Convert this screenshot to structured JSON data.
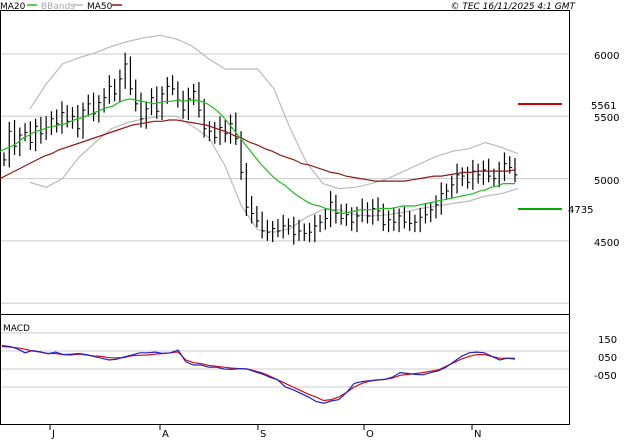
{
  "legend": {
    "ma20": "MA20",
    "bbands": "BBands",
    "ma50": "MA50",
    "copyright": "© TEC 16/11/2025 4:1 GMT"
  },
  "macd_label": "MACD",
  "colors": {
    "ma20": "#22bb22",
    "ma50": "#8b1a1a",
    "bbands": "#bbbbbb",
    "macd": "#2222cc",
    "signal": "#cc1111",
    "price": "#000000",
    "frame": "#000000",
    "grid": "#cccccc",
    "support": "#00aa00",
    "resistance": "#cc0000",
    "axis_text": "#000000"
  },
  "chart_data": [
    {
      "type": "line",
      "panel": "price",
      "x": [
        "J",
        "A",
        "S",
        "O",
        "N"
      ],
      "y_ticks": [
        "6000",
        "5500",
        "5000",
        "4500"
      ],
      "ylim": [
        4000,
        6250
      ],
      "price_start": 5150,
      "price_moves": [
        230,
        -120,
        90,
        20,
        -80,
        130,
        -60,
        50,
        70,
        -40,
        90,
        -70,
        40,
        -100,
        150,
        50,
        -80,
        90,
        40,
        90,
        -60,
        120,
        120,
        -200,
        -120,
        -120,
        80,
        90,
        -110,
        140,
        60,
        -20,
        -90,
        -80,
        90,
        60,
        -150,
        -150,
        -20,
        -50,
        80,
        -50,
        80,
        -120,
        -270,
        -280,
        -50,
        -60,
        -80,
        -10,
        30,
        -20,
        40,
        0,
        -70,
        30,
        -20,
        10,
        50,
        30,
        30,
        130,
        -90,
        -40,
        30,
        -60,
        50,
        50,
        -50,
        60,
        -20,
        -110,
        40,
        -20,
        50,
        -50,
        -10,
        10,
        40,
        20,
        40,
        40,
        90,
        20,
        50,
        80,
        -10,
        -50,
        90,
        -30,
        40,
        -50,
        -20,
        60,
        60,
        -30,
        -60
      ],
      "ma20_start": 5220,
      "ma20_moves": [
        20,
        20,
        30,
        40,
        20,
        30,
        10,
        20,
        10,
        10,
        10,
        20,
        20,
        10,
        20,
        20,
        20,
        20,
        10,
        30,
        20,
        10,
        -10,
        -10,
        -10,
        -10,
        10,
        10,
        0,
        10,
        -10,
        10,
        0,
        -10,
        -20,
        -30,
        -40,
        -50,
        -60,
        -60,
        -60,
        -60,
        -60,
        -60,
        -50,
        -50,
        -40,
        -30,
        -40,
        -40,
        -30,
        -30,
        -20,
        -10,
        -20,
        -10,
        -20,
        -10,
        10,
        10,
        10,
        0,
        0,
        10,
        0,
        0,
        10,
        10,
        0,
        0,
        10,
        10,
        10,
        10,
        10,
        10,
        10,
        10,
        10,
        10,
        20,
        10,
        20,
        10,
        20,
        0,
        0
      ],
      "ma50_start": 5000,
      "ma50_moves": [
        30,
        30,
        30,
        30,
        30,
        30,
        20,
        30,
        20,
        20,
        20,
        20,
        20,
        20,
        20,
        20,
        20,
        20,
        10,
        10,
        10,
        0,
        10,
        0,
        -10,
        -10,
        -10,
        -10,
        -20,
        -20,
        -20,
        -30,
        -20,
        -30,
        -20,
        -30,
        -20,
        -30,
        -20,
        -20,
        -30,
        -10,
        -20,
        -20,
        -20,
        -10,
        -20,
        -10,
        -10,
        -10,
        -10,
        0,
        0,
        0,
        0,
        10,
        10,
        10,
        10,
        0,
        10,
        10,
        10,
        0,
        10,
        0,
        0,
        0,
        0,
        10
      ],
      "band_upper": [
        5560,
        5760,
        5920,
        5970,
        6010,
        6060,
        6100,
        6130,
        6150,
        6120,
        6060,
        5960,
        5880,
        5880,
        5880,
        5720,
        5400,
        5130,
        4960,
        4920,
        4930,
        4960,
        5000,
        5060,
        5120,
        5180,
        5220,
        5240,
        5290,
        5250,
        5200
      ],
      "band_lower": [
        4970,
        4930,
        5000,
        5170,
        5290,
        5400,
        5450,
        5480,
        5500,
        5500,
        5420,
        5330,
        5100,
        4780,
        4590,
        4570,
        4600,
        4690,
        4750,
        4750,
        4710,
        4700,
        4710,
        4730,
        4760,
        4780,
        4800,
        4820,
        4860,
        4880,
        4920
      ],
      "support_label": "4735",
      "resistance_label": "5561",
      "support_value": 4735,
      "resistance_value": 5561
    },
    {
      "type": "line",
      "panel": "macd",
      "y_ticks": [
        "150",
        "050",
        "-050"
      ],
      "ylim": [
        -260,
        220
      ],
      "macd_values": [
        80,
        75,
        62,
        40,
        52,
        45,
        35,
        44,
        30,
        32,
        36,
        30,
        20,
        10,
        0,
        5,
        18,
        28,
        40,
        40,
        44,
        36,
        40,
        55,
        -10,
        -28,
        -28,
        -40,
        -40,
        -50,
        -52,
        -48,
        -50,
        -65,
        -78,
        -96,
        -110,
        -150,
        -165,
        -185,
        -205,
        -230,
        -240,
        -228,
        -220,
        -180,
        -130,
        -120,
        -115,
        -110,
        -108,
        -95,
        -70,
        -75,
        -80,
        -82,
        -70,
        -60,
        -40,
        -10,
        20,
        40,
        44,
        40,
        20,
        0,
        10,
        5
      ],
      "signal_values": [
        75,
        72,
        68,
        60,
        50,
        44,
        36,
        36,
        30,
        28,
        32,
        28,
        22,
        20,
        12,
        12,
        14,
        24,
        26,
        28,
        32,
        36,
        40,
        45,
        0,
        -15,
        -20,
        -30,
        -35,
        -40,
        -45,
        -48,
        -50,
        -60,
        -72,
        -90,
        -110,
        -130,
        -150,
        -170,
        -190,
        -205,
        -225,
        -220,
        -205,
        -180,
        -150,
        -130,
        -118,
        -112,
        -108,
        -100,
        -85,
        -80,
        -75,
        -70,
        -62,
        -55,
        -35,
        -15,
        5,
        20,
        30,
        30,
        20,
        10,
        10,
        10
      ]
    }
  ]
}
